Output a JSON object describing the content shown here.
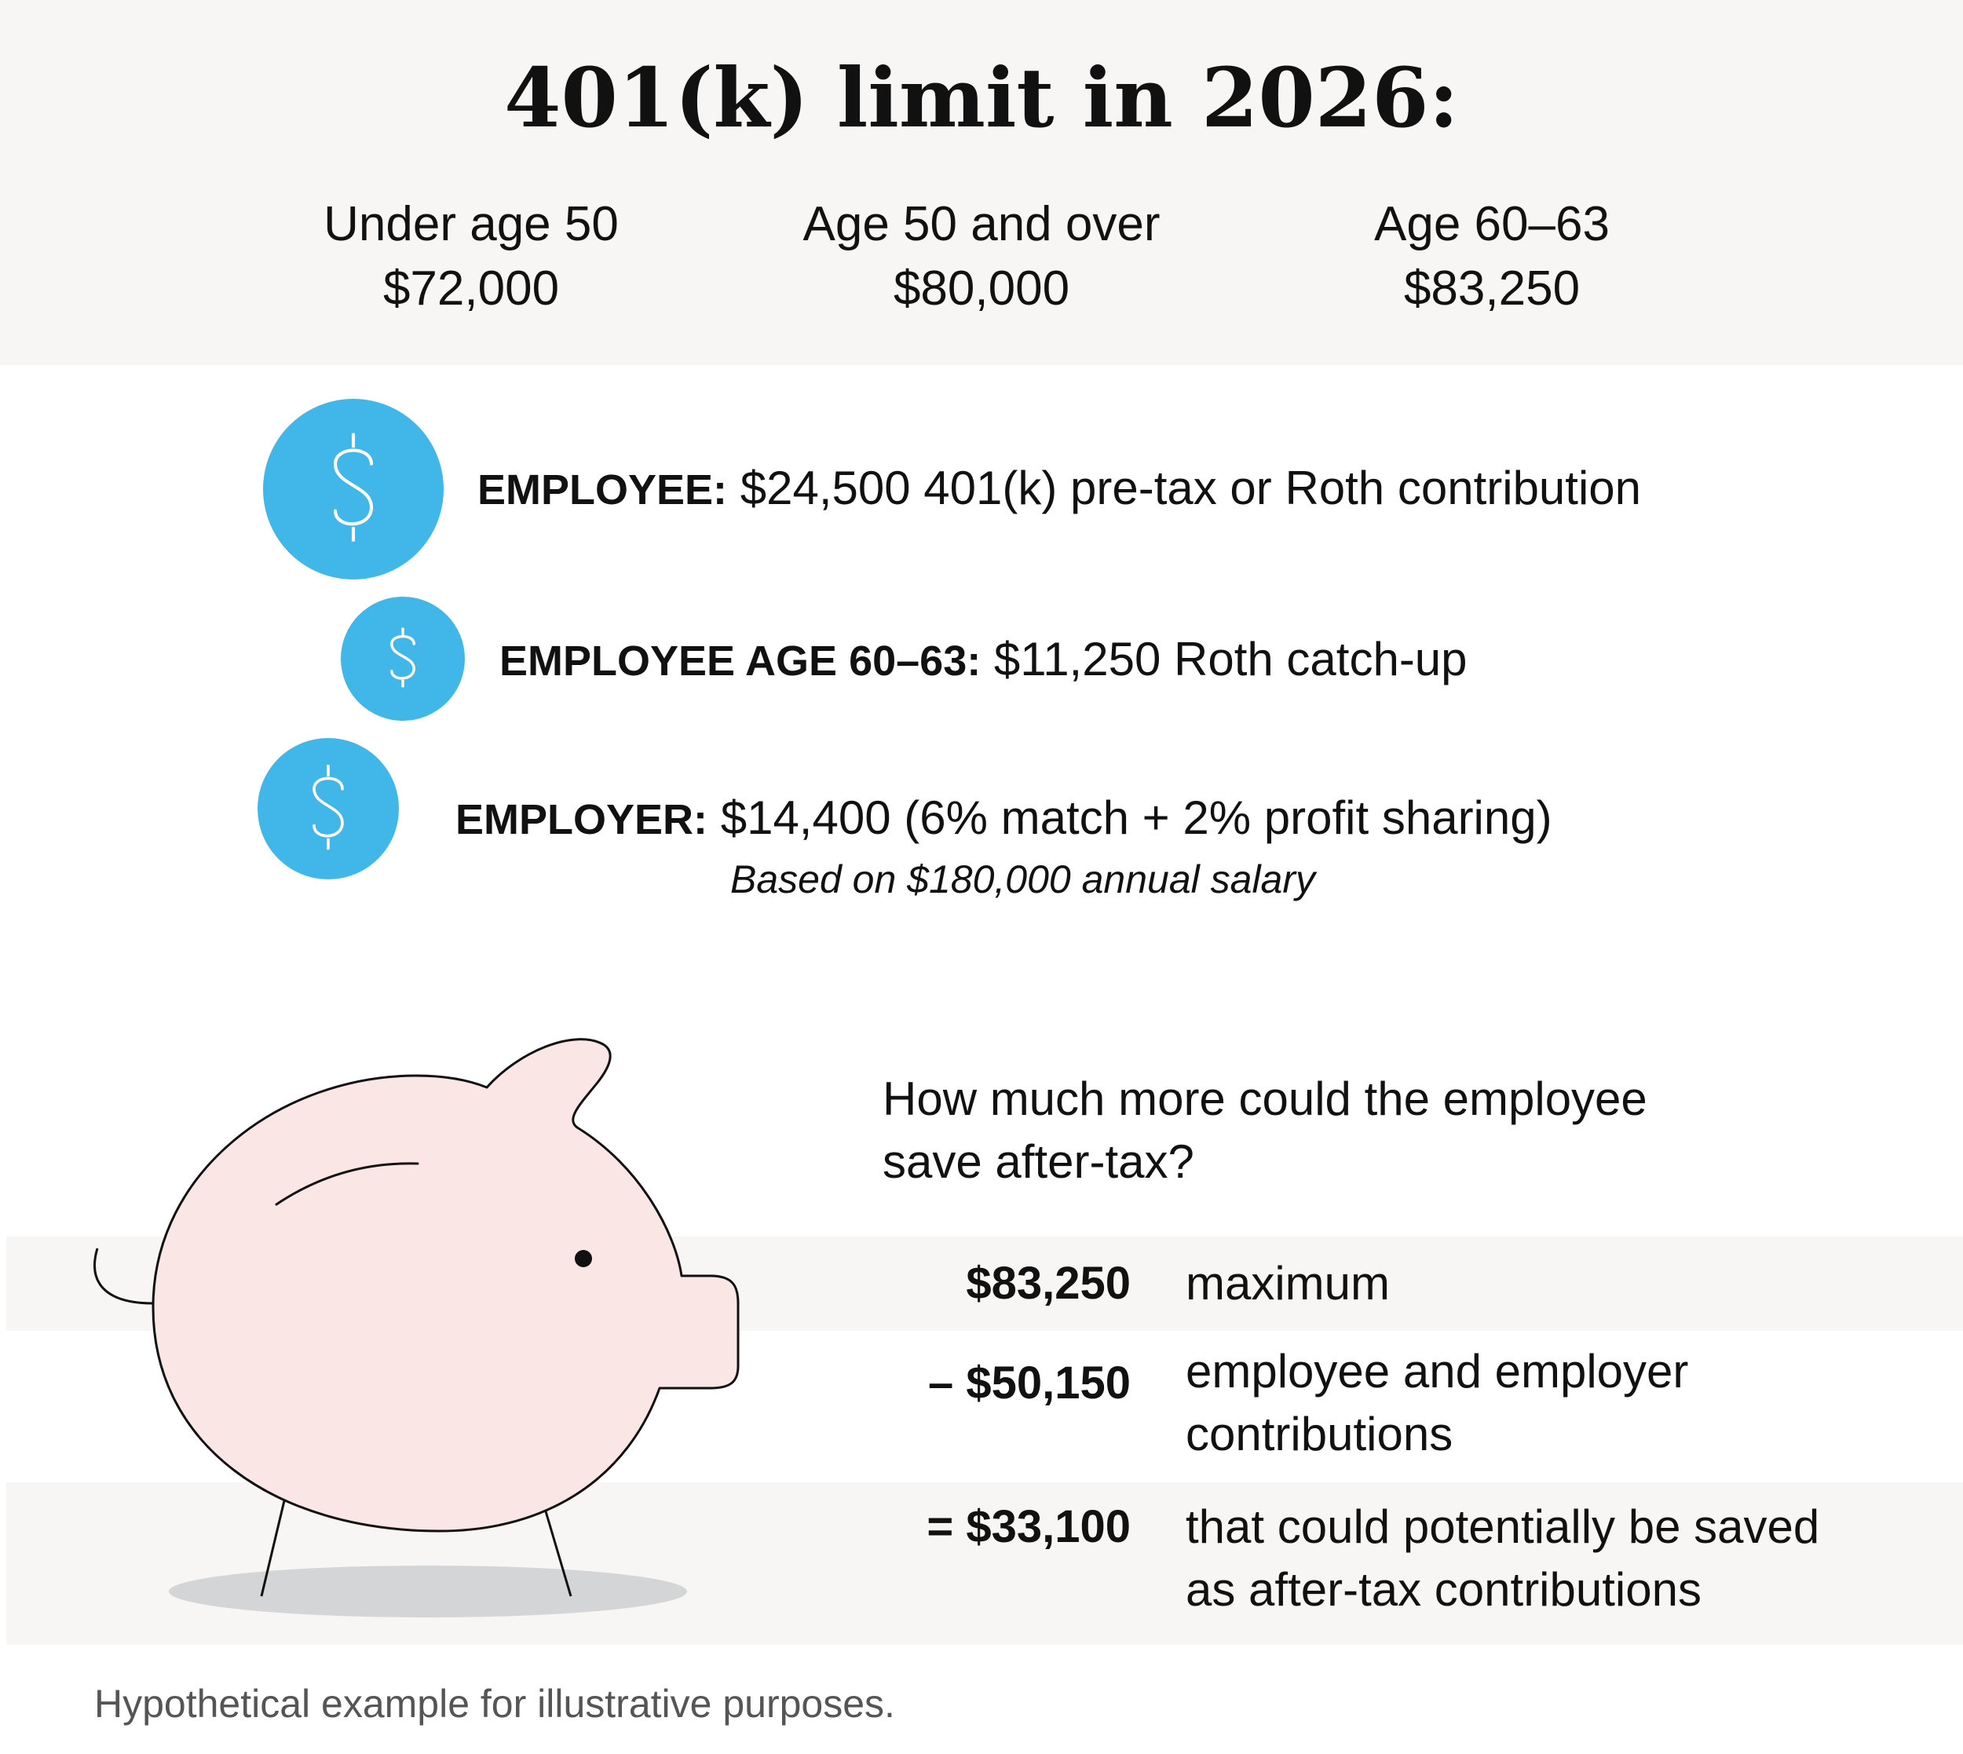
{
  "title": "401(k) limit in 2026:",
  "limits": [
    {
      "label": "Under age 50",
      "value": "$72,000"
    },
    {
      "label": "Age 50 and over",
      "value": "$80,000"
    },
    {
      "label": "Age 60–63",
      "value": "$83,250"
    }
  ],
  "contributions": [
    {
      "label": "EMPLOYEE:",
      "text": " $24,500 401(k) pre-tax or Roth contribution",
      "icon": "dollar-coin-icon"
    },
    {
      "label": "EMPLOYEE AGE 60–63:",
      "text": " $11,250 Roth catch-up",
      "icon": "dollar-coin-icon"
    },
    {
      "label": "EMPLOYER:",
      "text": " $14,400 (6% match + 2% profit sharing)",
      "icon": "dollar-coin-icon"
    }
  ],
  "salary_note": "Based on $180,000 annual salary",
  "question": {
    "line1": "How much more could the employee",
    "line2": "save after-tax?"
  },
  "calculation": [
    {
      "amount": "$83,250",
      "desc_lines": [
        "maximum"
      ]
    },
    {
      "amount": "– $50,150",
      "desc_lines": [
        "employee and employer",
        "contributions"
      ]
    },
    {
      "amount": "= $33,100",
      "desc_lines": [
        "that could potentially be saved",
        "as after-tax contributions"
      ]
    }
  ],
  "footer": "Hypothetical example for illustrative purposes.",
  "colors": {
    "header_band": "#f7f6f4",
    "coin": "#41b6e8",
    "pig_fill": "#fbe6e6",
    "shadow": "#d4d5d7",
    "footer_text": "#555555"
  },
  "illustration": "piggy-bank-icon"
}
